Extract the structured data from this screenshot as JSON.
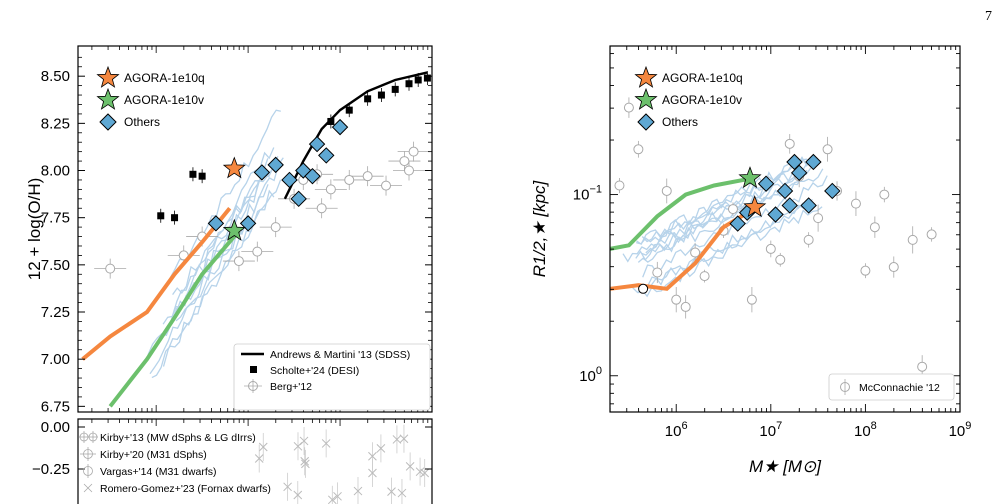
{
  "page_number": "7",
  "colors": {
    "agora_1e10q": "#f5873f",
    "agora_1e10v": "#6cc06c",
    "others": "#5fa8d3",
    "faint_lines": "#b7d3ea",
    "fit_line": "#000000",
    "obs_grey": "#a8a8a8"
  },
  "chart_data": [
    {
      "type": "scatter",
      "panel": "left-top",
      "xlabel": "",
      "ylabel": "12 + log(O/H)",
      "xlim": [
        5.15,
        9.0
      ],
      "ylim": [
        6.72,
        8.66
      ],
      "y_ticks": [
        "6.75",
        "7.00",
        "7.25",
        "7.50",
        "7.75",
        "8.00",
        "8.25",
        "8.50"
      ],
      "legend_upper": [
        {
          "label": "AGORA-1e10q",
          "marker": "star",
          "color": "#f5873f"
        },
        {
          "label": "AGORA-1e10v",
          "marker": "star",
          "color": "#6cc06c"
        },
        {
          "label": "Others",
          "marker": "diamond",
          "color": "#5fa8d3"
        }
      ],
      "legend_lower": [
        {
          "label": "Andrews & Martini '13 (SDSS)",
          "marker": "line"
        },
        {
          "label": "Scholte+'24 (DESI)",
          "marker": "square"
        },
        {
          "label": "Berg+'12",
          "marker": "open-circle-errorbar"
        }
      ],
      "series": [
        {
          "name": "AGORA-1e10q",
          "x": [
            5.2,
            5.5,
            5.9,
            6.2,
            6.5,
            6.8
          ],
          "y": [
            7.0,
            7.12,
            7.25,
            7.45,
            7.62,
            7.8
          ]
        },
        {
          "name": "AGORA-1e10v",
          "x": [
            5.5,
            5.9,
            6.2,
            6.5,
            6.9
          ],
          "y": [
            6.75,
            7.0,
            7.22,
            7.45,
            7.68
          ]
        },
        {
          "name": "Others",
          "x": [
            6.65,
            7.0,
            7.15,
            7.3,
            7.45,
            7.6,
            7.7,
            7.85,
            8.0,
            7.55,
            7.75
          ],
          "y": [
            7.72,
            7.72,
            7.99,
            8.03,
            7.95,
            8.0,
            7.97,
            8.08,
            8.23,
            7.85,
            8.14
          ]
        },
        {
          "name": "Andrews & Martini '13 (SDSS)",
          "x": [
            7.4,
            7.6,
            7.8,
            8.0,
            8.3,
            8.6,
            8.95
          ],
          "y": [
            7.85,
            8.05,
            8.22,
            8.32,
            8.42,
            8.48,
            8.52
          ]
        },
        {
          "name": "Scholte+'24 (DESI)",
          "x": [
            6.05,
            6.2,
            6.4,
            6.5,
            7.9,
            8.1,
            8.3,
            8.45,
            8.6,
            8.75,
            8.85,
            8.95
          ],
          "y": [
            7.76,
            7.75,
            7.98,
            7.97,
            8.26,
            8.32,
            8.38,
            8.4,
            8.43,
            8.46,
            8.48,
            8.49
          ]
        },
        {
          "name": "Berg+'12",
          "x": [
            5.5,
            6.3,
            6.5,
            6.9,
            7.1,
            7.3,
            7.5,
            7.6,
            7.75,
            7.8,
            7.9,
            8.1,
            8.3,
            8.5,
            8.7,
            8.75,
            8.8
          ],
          "y": [
            7.48,
            7.55,
            7.65,
            7.52,
            7.57,
            7.7,
            7.85,
            7.95,
            7.98,
            7.8,
            7.9,
            7.95,
            7.97,
            7.92,
            8.05,
            8.0,
            8.1
          ]
        }
      ]
    },
    {
      "type": "scatter",
      "panel": "left-bottom",
      "xlabel": "",
      "ylabel": "",
      "y_ticks": [
        "0.00",
        "−0.25"
      ],
      "legend": [
        {
          "label": "Kirby+'13 (MW dSphs & LG dIrrs)",
          "marker": "open-circle-errorbar"
        },
        {
          "label": "Kirby+'20 (M31 dSphs)",
          "marker": "open-circle-errorbar"
        },
        {
          "label": "Vargas+'14 (M31 dwarfs)",
          "marker": "open-circle-errorbar"
        },
        {
          "label": "Romero-Gomez+'23 (Fornax dwarfs)",
          "marker": "cross"
        }
      ]
    },
    {
      "type": "scatter",
      "panel": "right",
      "xlabel": "M★ [M⊙]",
      "ylabel": "R1/2,★ [kpc]",
      "x_scale": "log",
      "y_scale": "log",
      "xlim": [
        5.3,
        9.0
      ],
      "ylim": [
        -1.2,
        0.82
      ],
      "x_ticks": [
        "10^6",
        "10^7",
        "10^8",
        "10^9"
      ],
      "y_ticks": [
        "10^−1",
        "10^0"
      ],
      "legend_upper": [
        {
          "label": "AGORA-1e10q",
          "marker": "star",
          "color": "#f5873f"
        },
        {
          "label": "AGORA-1e10v",
          "marker": "star",
          "color": "#6cc06c"
        },
        {
          "label": "Others",
          "marker": "diamond",
          "color": "#5fa8d3"
        }
      ],
      "legend_lower": [
        {
          "label": "McConnachie '12",
          "marker": "open-circle-errorbar"
        }
      ],
      "series": [
        {
          "name": "AGORA-1e10q",
          "x": [
            5.3,
            5.6,
            5.9,
            6.2,
            6.5,
            6.85
          ],
          "y": [
            -0.52,
            -0.5,
            -0.52,
            -0.38,
            -0.18,
            -0.07
          ]
        },
        {
          "name": "AGORA-1e10v",
          "x": [
            5.3,
            5.5,
            5.8,
            6.1,
            6.4,
            6.8
          ],
          "y": [
            -0.3,
            -0.28,
            -0.12,
            0.0,
            0.05,
            0.09
          ]
        },
        {
          "name": "Others",
          "x": [
            6.65,
            6.75,
            6.95,
            7.05,
            7.15,
            7.2,
            7.25,
            7.3,
            7.4,
            7.45,
            7.65
          ],
          "y": [
            -0.16,
            -0.1,
            0.06,
            -0.11,
            0.02,
            -0.06,
            0.18,
            0.12,
            -0.06,
            0.18,
            0.02
          ]
        },
        {
          "name": "McConnachie '12",
          "x": [
            5.5,
            5.6,
            5.9,
            6.0,
            6.3,
            6.5,
            6.8,
            7.0,
            7.2,
            7.5,
            7.7,
            8.0,
            8.3,
            8.5,
            8.6,
            8.7
          ],
          "y": [
            0.48,
            0.25,
            0.02,
            -0.58,
            -0.45,
            -0.2,
            -0.58,
            -0.3,
            0.28,
            -0.13,
            0.02,
            -0.42,
            -0.4,
            -0.25,
            -0.95,
            -0.22
          ]
        }
      ]
    }
  ]
}
